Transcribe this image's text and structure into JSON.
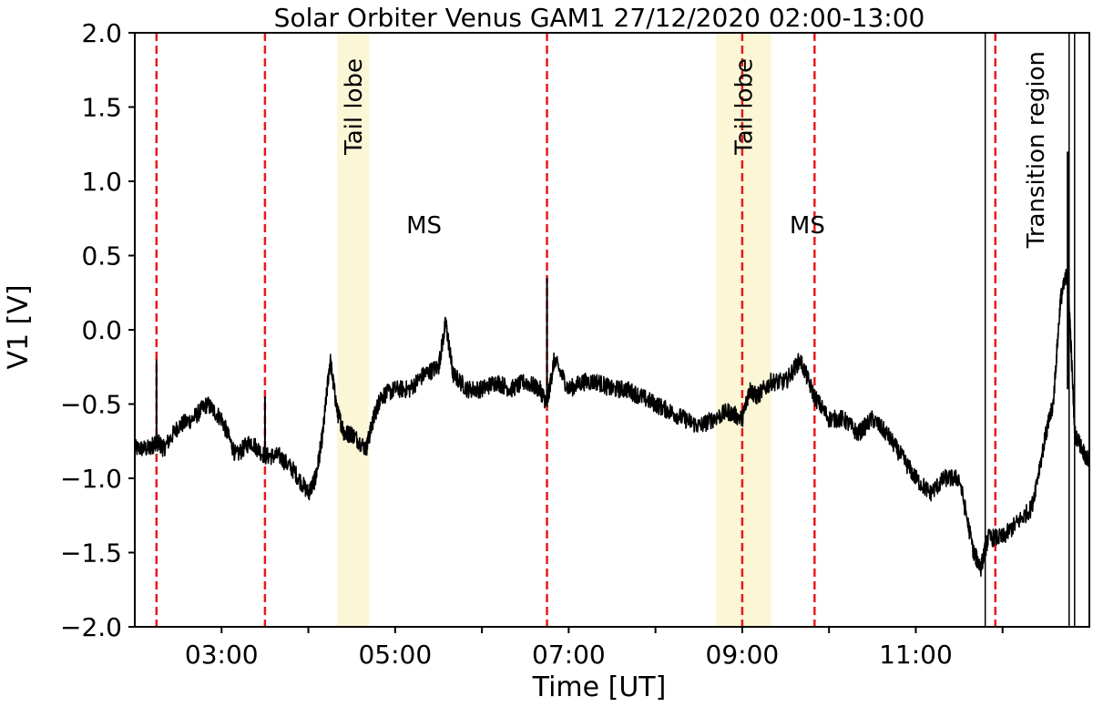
{
  "chart_data": {
    "type": "line",
    "title": "Solar Orbiter Venus GAM1 27/12/2020 02:00-13:00",
    "xlabel": "Time [UT]",
    "ylabel": "V1 [V]",
    "xlim": [
      "02:00",
      "13:00"
    ],
    "ylim": [
      -2.0,
      2.0
    ],
    "x_tick_labels": [
      "03:00",
      "05:00",
      "07:00",
      "09:00",
      "11:00"
    ],
    "y_tick_labels": [
      "−2.0",
      "−1.5",
      "−1.0",
      "−0.5",
      "0.0",
      "0.5",
      "1.0",
      "1.5",
      "2.0"
    ],
    "series": [
      {
        "color": "#000000",
        "x": [
          "02:00",
          "02:10",
          "02:15",
          "02:20",
          "02:30",
          "02:40",
          "02:50",
          "03:00",
          "03:10",
          "03:20",
          "03:30",
          "03:40",
          "03:50",
          "04:00",
          "04:05",
          "04:10",
          "04:15",
          "04:20",
          "04:25",
          "04:30",
          "04:40",
          "04:45",
          "04:50",
          "05:00",
          "05:10",
          "05:20",
          "05:30",
          "05:35",
          "05:40",
          "05:50",
          "06:00",
          "06:10",
          "06:20",
          "06:30",
          "06:40",
          "06:45",
          "06:50",
          "07:00",
          "07:10",
          "07:20",
          "07:30",
          "07:40",
          "07:50",
          "08:00",
          "08:10",
          "08:20",
          "08:30",
          "08:40",
          "08:50",
          "09:00",
          "09:05",
          "09:10",
          "09:20",
          "09:30",
          "09:40",
          "09:50",
          "10:00",
          "10:10",
          "10:20",
          "10:30",
          "10:40",
          "10:50",
          "11:00",
          "11:10",
          "11:20",
          "11:30",
          "11:40",
          "11:45",
          "11:50",
          "12:00",
          "12:10",
          "12:20",
          "12:30",
          "12:35",
          "12:40",
          "12:45",
          "12:50",
          "13:00"
        ],
        "y": [
          -0.8,
          -0.8,
          -0.75,
          -0.8,
          -0.65,
          -0.6,
          -0.5,
          -0.6,
          -0.85,
          -0.75,
          -0.85,
          -0.85,
          -0.95,
          -1.1,
          -1.0,
          -0.7,
          -0.2,
          -0.55,
          -0.7,
          -0.7,
          -0.8,
          -0.6,
          -0.45,
          -0.4,
          -0.4,
          -0.3,
          -0.25,
          0.05,
          -0.3,
          -0.4,
          -0.4,
          -0.35,
          -0.4,
          -0.35,
          -0.4,
          -0.5,
          -0.2,
          -0.4,
          -0.35,
          -0.35,
          -0.4,
          -0.4,
          -0.45,
          -0.5,
          -0.55,
          -0.6,
          -0.65,
          -0.6,
          -0.55,
          -0.6,
          -0.4,
          -0.45,
          -0.35,
          -0.35,
          -0.2,
          -0.45,
          -0.6,
          -0.6,
          -0.7,
          -0.6,
          -0.7,
          -0.85,
          -1.0,
          -1.1,
          -1.0,
          -1.0,
          -1.5,
          -1.6,
          -1.4,
          -1.4,
          -1.3,
          -1.2,
          -0.7,
          -0.5,
          0.2,
          0.4,
          -0.7,
          -0.9
        ]
      }
    ],
    "spikes": [
      {
        "x": "02:15",
        "y_min": -0.8,
        "y_max": -0.2
      },
      {
        "x": "03:30",
        "y_min": -0.8,
        "y_max": -0.45
      },
      {
        "x": "06:45",
        "y_min": -0.45,
        "y_max": 0.35
      },
      {
        "x": "12:45",
        "y_min": -0.4,
        "y_max": 1.2
      }
    ],
    "boundary_lines": {
      "color": "#e8191c",
      "style": "dashed",
      "x": [
        "02:15",
        "03:30",
        "06:45",
        "09:00",
        "09:50",
        "11:55"
      ]
    },
    "shaded_regions": [
      {
        "label": "Tail lobe",
        "x_start": "04:20",
        "x_end": "04:42",
        "color": "#fbf6d6"
      },
      {
        "label": "Tail lobe",
        "x_start": "08:42",
        "x_end": "09:20",
        "color": "#fbf6d6"
      }
    ],
    "boxed_regions": [
      {
        "label": "Transition region",
        "x_start": "11:48",
        "x_end": "12:46"
      }
    ],
    "annotations": [
      {
        "text": "MS",
        "x": "05:20",
        "y": 0.65
      },
      {
        "text": "MS",
        "x": "09:45",
        "y": 0.65
      }
    ]
  }
}
